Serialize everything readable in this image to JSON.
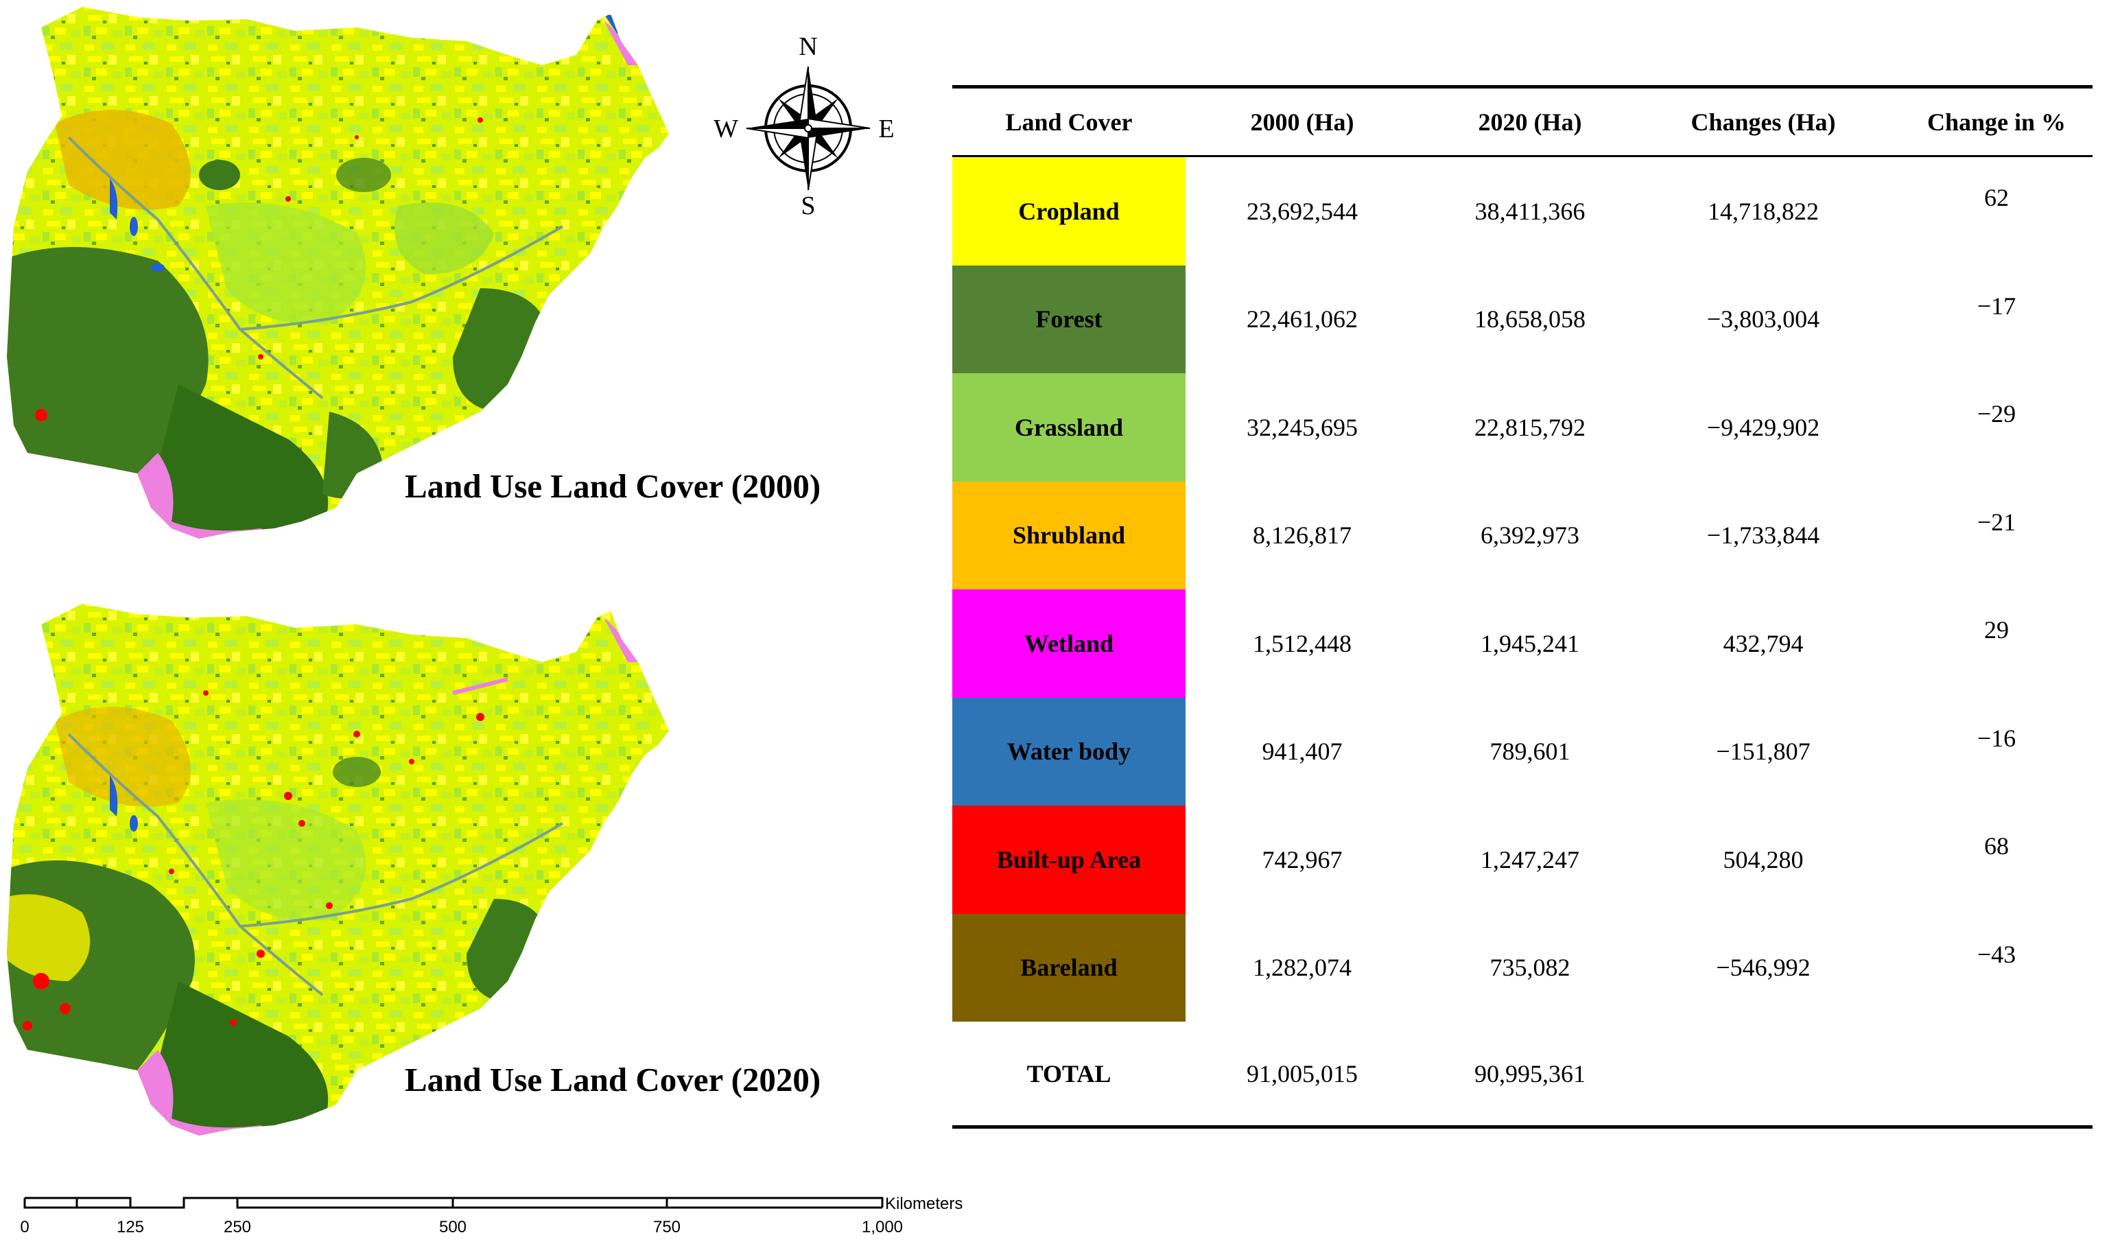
{
  "maps": {
    "map_2000_title": "Land Use Land Cover (2000)",
    "map_2020_title": "Land Use Land Cover (2020)"
  },
  "compass": {
    "north": "N",
    "south": "S",
    "east": "E",
    "west": "W"
  },
  "scale_bar": {
    "ticks": [
      "0",
      "125",
      "250",
      "500",
      "750",
      "1,000"
    ],
    "unit": "Kilometers"
  },
  "table": {
    "headers": [
      "Land Cover",
      "2000 (Ha)",
      "2020 (Ha)",
      "Changes (Ha)",
      "Change in %"
    ],
    "rows": [
      {
        "land_cover": "Cropland",
        "ha_2000": "23,692,544",
        "ha_2020": "38,411,366",
        "change_ha": "14,718,822",
        "change_pct": "62",
        "color": "#ffff00",
        "text_color": "#000000"
      },
      {
        "land_cover": "Forest",
        "ha_2000": "22,461,062",
        "ha_2020": "18,658,058",
        "change_ha": "−3,803,004",
        "change_pct": "−17",
        "color": "#548235",
        "text_color": "#000000"
      },
      {
        "land_cover": "Grassland",
        "ha_2000": "32,245,695",
        "ha_2020": "22,815,792",
        "change_ha": "−9,429,902",
        "change_pct": "−29",
        "color": "#92d050",
        "text_color": "#000000"
      },
      {
        "land_cover": "Shrubland",
        "ha_2000": "8,126,817",
        "ha_2020": "6,392,973",
        "change_ha": "−1,733,844",
        "change_pct": "−21",
        "color": "#ffc000",
        "text_color": "#000000"
      },
      {
        "land_cover": "Wetland",
        "ha_2000": "1,512,448",
        "ha_2020": "1,945,241",
        "change_ha": "432,794",
        "change_pct": "29",
        "color": "#ff00ff",
        "text_color": "#000000"
      },
      {
        "land_cover": "Water  body",
        "ha_2000": "941,407",
        "ha_2020": "789,601",
        "change_ha": "−151,807",
        "change_pct": "−16",
        "color": "#2e75b6",
        "text_color": "#000000"
      },
      {
        "land_cover": "Built-up Area",
        "ha_2000": "742,967",
        "ha_2020": "1,247,247",
        "change_ha": "504,280",
        "change_pct": "68",
        "color": "#ff0000",
        "text_color": "#000000"
      },
      {
        "land_cover": "Bareland",
        "ha_2000": "1,282,074",
        "ha_2020": "735,082",
        "change_ha": "−546,992",
        "change_pct": "−43",
        "color": "#7f6000",
        "text_color": "#000000"
      }
    ],
    "total": {
      "label": "TOTAL",
      "ha_2000": "91,005,015",
      "ha_2020": "90,995,361"
    }
  }
}
